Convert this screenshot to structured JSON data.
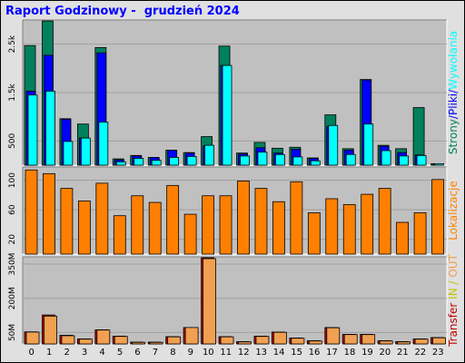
{
  "title": "Raport Godzinowy -  grudzień 2024",
  "colors": {
    "frame_bg": "#e0e0e0",
    "panel_bg": "#c0c0c0",
    "strony": "#00805c",
    "pliki": "#0000ff",
    "wywolania": "#00ffff",
    "lokalizacje": "#ff8000",
    "transfer_out": "#c00000",
    "transfer_in": "#f0a050"
  },
  "chart_data": [
    {
      "type": "bar",
      "categories": [
        "0",
        "1",
        "2",
        "3",
        "4",
        "5",
        "6",
        "7",
        "8",
        "9",
        "10",
        "11",
        "12",
        "13",
        "14",
        "15",
        "16",
        "17",
        "18",
        "19",
        "20",
        "21",
        "22",
        "23"
      ],
      "y_ticks": [
        "500",
        "1.5k",
        "2.5k"
      ],
      "ylim": [
        0,
        3000
      ],
      "series": [
        {
          "name": "Strony",
          "values": [
            2470,
            2980,
            960,
            850,
            2430,
            130,
            200,
            160,
            310,
            260,
            590,
            2460,
            250,
            470,
            350,
            370,
            150,
            1040,
            340,
            1770,
            410,
            340,
            1190,
            30
          ]
        },
        {
          "name": "Pliki",
          "values": [
            1530,
            2270,
            950,
            560,
            2320,
            110,
            190,
            160,
            310,
            250,
            400,
            2060,
            230,
            360,
            250,
            330,
            140,
            800,
            310,
            1760,
            390,
            260,
            210,
            20
          ]
        },
        {
          "name": "Wywołania",
          "values": [
            1450,
            1530,
            490,
            560,
            890,
            70,
            140,
            100,
            160,
            180,
            410,
            2060,
            190,
            270,
            220,
            170,
            90,
            820,
            220,
            850,
            300,
            190,
            200,
            30
          ]
        }
      ],
      "side_label": [
        "Strony",
        "/",
        "Pliki",
        "/",
        "Wywołania"
      ]
    },
    {
      "type": "bar",
      "categories": [
        "0",
        "1",
        "2",
        "3",
        "4",
        "5",
        "6",
        "7",
        "8",
        "9",
        "10",
        "11",
        "12",
        "13",
        "14",
        "15",
        "16",
        "17",
        "18",
        "19",
        "20",
        "21",
        "22",
        "23"
      ],
      "y_ticks": [
        "20",
        "60",
        "100"
      ],
      "ylim": [
        0,
        118
      ],
      "series": [
        {
          "name": "Lokalizacje",
          "values": [
            114,
            109,
            89,
            72,
            96,
            52,
            79,
            70,
            93,
            54,
            79,
            79,
            99,
            89,
            71,
            98,
            56,
            75,
            67,
            81,
            89,
            43,
            56,
            101
          ]
        }
      ],
      "side_label": [
        "Lokalizacje"
      ]
    },
    {
      "type": "bar",
      "categories": [
        "0",
        "1",
        "2",
        "3",
        "4",
        "5",
        "6",
        "7",
        "8",
        "9",
        "10",
        "11",
        "12",
        "13",
        "14",
        "15",
        "16",
        "17",
        "18",
        "19",
        "20",
        "21",
        "22",
        "23"
      ],
      "y_ticks": [
        "50M",
        "200M",
        "350M"
      ],
      "ylim": [
        0,
        382
      ],
      "series": [
        {
          "name": "OUT",
          "values": [
            53,
            127,
            38,
            22,
            62,
            34,
            8,
            8,
            32,
            72,
            378,
            32,
            10,
            34,
            52,
            26,
            14,
            72,
            42,
            42,
            14,
            10,
            22,
            28
          ]
        },
        {
          "name": "IN",
          "values": [
            52,
            122,
            36,
            21,
            61,
            33,
            7,
            7,
            31,
            72,
            374,
            31,
            9,
            33,
            51,
            25,
            13,
            71,
            41,
            41,
            13,
            9,
            21,
            27
          ]
        }
      ],
      "side_label": [
        "Transfer",
        "IN",
        "/",
        "OUT"
      ]
    }
  ]
}
